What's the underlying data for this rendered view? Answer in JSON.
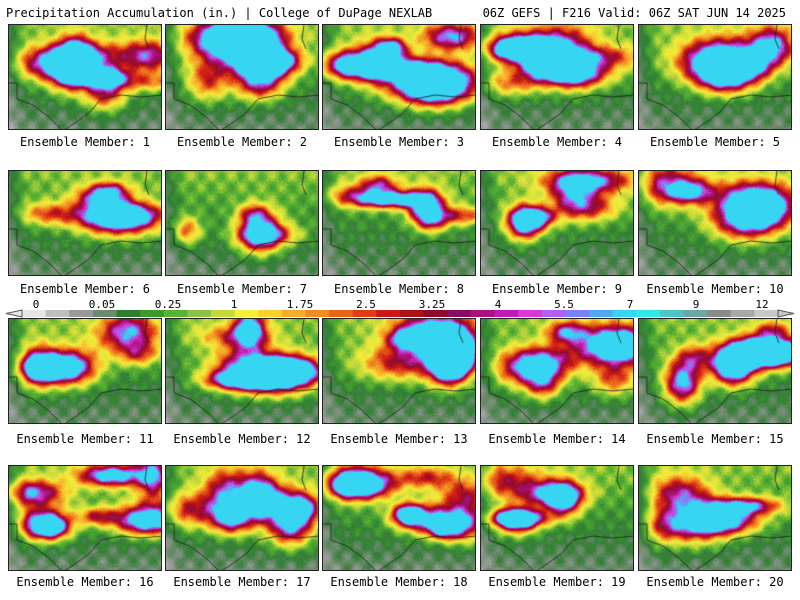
{
  "header": {
    "left": "Precipitation Accumulation (in.) | College of DuPage NEXLAB",
    "right": "06Z GEFS | F216 Valid: 06Z SAT JUN 14 2025"
  },
  "scale": {
    "labels": [
      "0",
      "0.05",
      "0.25",
      "1",
      "1.75",
      "2.5",
      "3.25",
      "4",
      "5.5",
      "7",
      "9",
      "12"
    ],
    "colors": [
      "#e6e6e6",
      "#bfbfbf",
      "#9a9a9a",
      "#6e8a6e",
      "#2e7d32",
      "#3b9a2e",
      "#58b233",
      "#8bc34a",
      "#c4d93a",
      "#f4ef3b",
      "#f8d12f",
      "#f6ae2a",
      "#f08c22",
      "#e9641b",
      "#e03a17",
      "#cc1717",
      "#ad1212",
      "#8e0b2e",
      "#8a0c5e",
      "#a8127f",
      "#c21ab7",
      "#d838d8",
      "#b061f0",
      "#7c82f5",
      "#52a9f3",
      "#36d6f2",
      "#33e9e4",
      "#50c3c3",
      "#6fa5a5",
      "#8a8a8a",
      "#a8a8a8",
      "#c8c8c8"
    ]
  },
  "members": [
    {
      "label": "Ensemble Member: 1"
    },
    {
      "label": "Ensemble Member: 2"
    },
    {
      "label": "Ensemble Member: 3"
    },
    {
      "label": "Ensemble Member: 4"
    },
    {
      "label": "Ensemble Member: 5"
    },
    {
      "label": "Ensemble Member: 6"
    },
    {
      "label": "Ensemble Member: 7"
    },
    {
      "label": "Ensemble Member: 8"
    },
    {
      "label": "Ensemble Member: 9"
    },
    {
      "label": "Ensemble Member: 10"
    },
    {
      "label": "Ensemble Member: 11"
    },
    {
      "label": "Ensemble Member: 12"
    },
    {
      "label": "Ensemble Member: 13"
    },
    {
      "label": "Ensemble Member: 14"
    },
    {
      "label": "Ensemble Member: 15"
    },
    {
      "label": "Ensemble Member: 16"
    },
    {
      "label": "Ensemble Member: 17"
    },
    {
      "label": "Ensemble Member: 18"
    },
    {
      "label": "Ensemble Member: 19"
    },
    {
      "label": "Ensemble Member: 20"
    }
  ]
}
